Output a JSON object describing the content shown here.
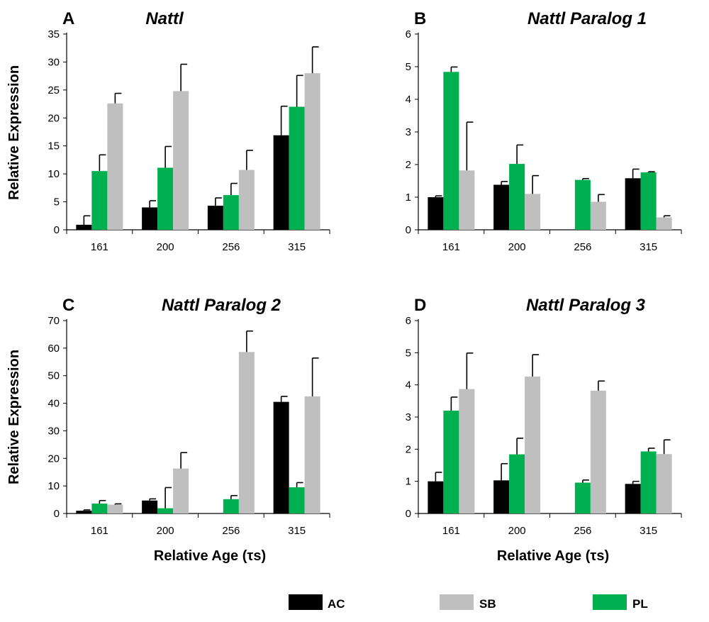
{
  "chart_data": [
    {
      "type": "bar",
      "panel": "A",
      "title": "Nattl",
      "xlabel": "",
      "ylabel": "Relative Expression",
      "ylim": [
        0,
        35
      ],
      "yticks": [
        0,
        5,
        10,
        15,
        20,
        25,
        30,
        35
      ],
      "categories": [
        "161",
        "200",
        "256",
        "315"
      ],
      "series": [
        {
          "name": "AC",
          "values": [
            0.9,
            4.0,
            4.3,
            16.9
          ],
          "errors": [
            1.6,
            1.2,
            1.4,
            5.2
          ]
        },
        {
          "name": "PL",
          "values": [
            10.5,
            11.1,
            6.2,
            22.0
          ],
          "errors": [
            2.9,
            3.8,
            2.1,
            5.6
          ]
        },
        {
          "name": "SB",
          "values": [
            22.6,
            24.8,
            10.7,
            28.0
          ],
          "errors": [
            1.8,
            4.8,
            3.5,
            4.7
          ]
        }
      ]
    },
    {
      "type": "bar",
      "panel": "B",
      "title": "Nattl Paralog 1",
      "xlabel": "",
      "ylabel": "",
      "ylim": [
        0,
        6
      ],
      "yticks": [
        0,
        1,
        2,
        3,
        4,
        5,
        6
      ],
      "categories": [
        "161",
        "200",
        "256",
        "315"
      ],
      "series": [
        {
          "name": "AC",
          "values": [
            1.0,
            1.38,
            null,
            1.58
          ],
          "errors": [
            0.04,
            0.1,
            null,
            0.28
          ]
        },
        {
          "name": "PL",
          "values": [
            4.84,
            2.02,
            1.53,
            1.76
          ],
          "errors": [
            0.15,
            0.58,
            0.04,
            0.02
          ]
        },
        {
          "name": "SB",
          "values": [
            1.82,
            1.1,
            0.86,
            0.38
          ],
          "errors": [
            1.48,
            0.56,
            0.22,
            0.05
          ]
        }
      ]
    },
    {
      "type": "bar",
      "panel": "C",
      "title": "Nattl Paralog 2",
      "xlabel": "Relative Age (τs)",
      "ylabel": "Relative Expression",
      "ylim": [
        0,
        70
      ],
      "yticks": [
        0,
        10,
        20,
        30,
        40,
        50,
        60,
        70
      ],
      "categories": [
        "161",
        "200",
        "256",
        "315"
      ],
      "series": [
        {
          "name": "AC",
          "values": [
            1.0,
            4.7,
            null,
            40.5
          ],
          "errors": [
            0.3,
            0.6,
            null,
            2.0
          ]
        },
        {
          "name": "PL",
          "values": [
            3.6,
            1.9,
            5.2,
            9.5
          ],
          "errors": [
            1.1,
            7.5,
            1.3,
            1.7
          ]
        },
        {
          "name": "SB",
          "values": [
            3.2,
            16.3,
            58.6,
            42.5
          ],
          "errors": [
            0.3,
            5.8,
            7.6,
            13.9
          ]
        }
      ]
    },
    {
      "type": "bar",
      "panel": "D",
      "title": "Nattl Paralog 3",
      "xlabel": "Relative Age (τs)",
      "ylabel": "",
      "ylim": [
        0,
        6
      ],
      "yticks": [
        0,
        1,
        2,
        3,
        4,
        5,
        6
      ],
      "categories": [
        "161",
        "200",
        "256",
        "315"
      ],
      "series": [
        {
          "name": "AC",
          "values": [
            1.0,
            1.03,
            null,
            0.92
          ],
          "errors": [
            0.28,
            0.52,
            null,
            0.08
          ]
        },
        {
          "name": "PL",
          "values": [
            3.2,
            1.84,
            0.96,
            1.93
          ],
          "errors": [
            0.42,
            0.5,
            0.08,
            0.1
          ]
        },
        {
          "name": "SB",
          "values": [
            3.87,
            4.26,
            3.82,
            1.85
          ],
          "errors": [
            1.12,
            0.68,
            0.3,
            0.44
          ]
        }
      ]
    }
  ],
  "legend": {
    "position": "bottom",
    "items": [
      {
        "label": "AC",
        "color": "#000000"
      },
      {
        "label": "SB",
        "color": "#bfbfbf"
      },
      {
        "label": "PL",
        "color": "#00b050"
      }
    ]
  },
  "colors": {
    "AC": "#000000",
    "PL": "#00b050",
    "SB": "#bfbfbf"
  }
}
